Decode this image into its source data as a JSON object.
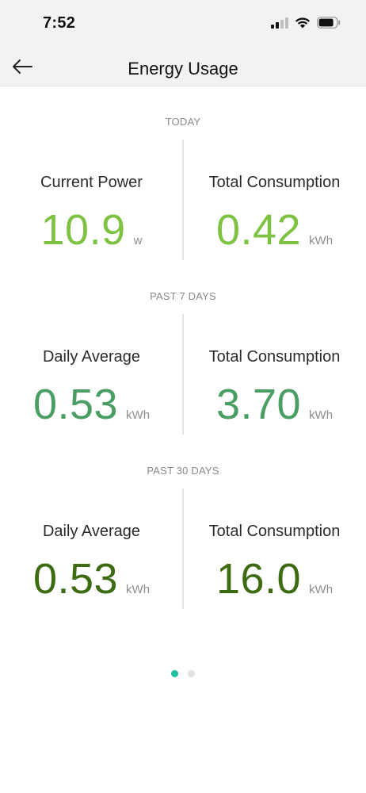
{
  "status_bar": {
    "time": "7:52"
  },
  "nav": {
    "title": "Energy Usage"
  },
  "sections": [
    {
      "label": "TODAY",
      "color": "#7ec242",
      "left": {
        "label": "Current Power",
        "value": "10.9",
        "unit": "w"
      },
      "right": {
        "label": "Total Consumption",
        "value": "0.42",
        "unit": "kWh"
      }
    },
    {
      "label": "PAST 7 DAYS",
      "color": "#4a9e63",
      "left": {
        "label": "Daily Average",
        "value": "0.53",
        "unit": "kWh"
      },
      "right": {
        "label": "Total Consumption",
        "value": "3.70",
        "unit": "kWh"
      }
    },
    {
      "label": "PAST 30 DAYS",
      "color": "#3d6b12",
      "left": {
        "label": "Daily Average",
        "value": "0.53",
        "unit": "kWh"
      },
      "right": {
        "label": "Total Consumption",
        "value": "16.0",
        "unit": "kWh"
      }
    }
  ],
  "pager": {
    "active_color": "#1fbfa0",
    "inactive_color": "#e3e3e3",
    "pages": 2,
    "active_index": 0
  }
}
